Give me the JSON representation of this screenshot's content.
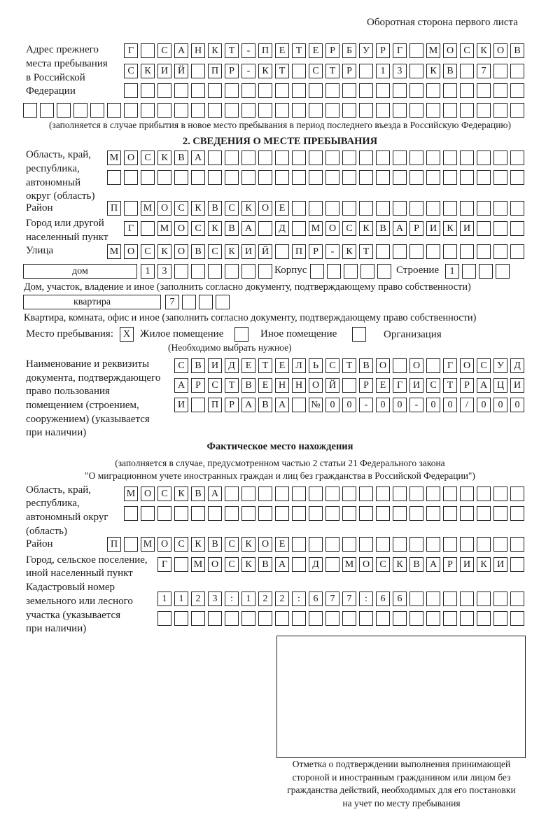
{
  "page_header": "Оборотная сторона первого листа",
  "prev_address": {
    "label": [
      "Адрес прежнего",
      "места пребывания",
      "в Российской",
      "Федерации"
    ],
    "rows": [
      [
        "Г",
        "",
        "С",
        "А",
        "Н",
        "К",
        "Т",
        "-",
        "П",
        "Е",
        "Т",
        "Е",
        "Р",
        "Б",
        "У",
        "Р",
        "Г",
        "",
        "М",
        "О",
        "С",
        "К",
        "О",
        "В"
      ],
      [
        "С",
        "К",
        "И",
        "Й",
        "",
        "П",
        "Р",
        "-",
        "К",
        "Т",
        "",
        "С",
        "Т",
        "Р",
        "",
        "1",
        "3",
        "",
        "К",
        "В",
        "",
        "7",
        "",
        ""
      ],
      [
        "",
        "",
        "",
        "",
        "",
        "",
        "",
        "",
        "",
        "",
        "",
        "",
        "",
        "",
        "",
        "",
        "",
        "",
        "",
        "",
        "",
        "",
        "",
        ""
      ],
      [
        "",
        "",
        "",
        "",
        "",
        "",
        "",
        "",
        "",
        "",
        "",
        "",
        "",
        "",
        "",
        "",
        "",
        "",
        "",
        "",
        "",
        "",
        "",
        "",
        "",
        "",
        "",
        "",
        "",
        ""
      ]
    ],
    "note": "(заполняется в случае прибытия в новое место пребывания в период последнего въезда в Российскую Федерацию)"
  },
  "section2": {
    "title": "2. СВЕДЕНИЯ О МЕСТЕ ПРЕБЫВАНИЯ",
    "region": {
      "label": [
        "Область, край,",
        "республика,",
        "автономный",
        "округ (область)"
      ],
      "rows": [
        [
          "М",
          "О",
          "С",
          "К",
          "В",
          "А",
          "",
          "",
          "",
          "",
          "",
          "",
          "",
          "",
          "",
          "",
          "",
          "",
          "",
          "",
          "",
          "",
          "",
          "",
          ""
        ],
        [
          "",
          "",
          "",
          "",
          "",
          "",
          "",
          "",
          "",
          "",
          "",
          "",
          "",
          "",
          "",
          "",
          "",
          "",
          "",
          "",
          "",
          "",
          "",
          "",
          ""
        ]
      ]
    },
    "district": {
      "label": "Район",
      "row": [
        "П",
        "",
        "М",
        "О",
        "С",
        "К",
        "В",
        "С",
        "К",
        "О",
        "Е",
        "",
        "",
        "",
        "",
        "",
        "",
        "",
        "",
        "",
        "",
        "",
        "",
        "",
        ""
      ]
    },
    "city": {
      "label": [
        "Город или другой",
        "населенный пункт"
      ],
      "row": [
        "Г",
        "",
        "М",
        "О",
        "С",
        "К",
        "В",
        "А",
        "",
        "Д",
        "",
        "М",
        "О",
        "С",
        "К",
        "В",
        "А",
        "Р",
        "И",
        "К",
        "И",
        "",
        "",
        ""
      ]
    },
    "street": {
      "label": "Улица",
      "row": [
        "М",
        "О",
        "С",
        "К",
        "О",
        "В",
        "С",
        "К",
        "И",
        "Й",
        "",
        "П",
        "Р",
        "-",
        "К",
        "Т",
        "",
        "",
        "",
        "",
        "",
        "",
        "",
        "",
        ""
      ]
    },
    "house": {
      "type_value": "дом",
      "number": [
        "1",
        "3",
        "",
        "",
        "",
        "",
        "",
        ""
      ],
      "korpus_label": "Корпус",
      "korpus": [
        "",
        "",
        "",
        "",
        ""
      ],
      "building_label": "Строение",
      "building": [
        "1",
        "",
        "",
        ""
      ],
      "note": "Дом, участок, владение и иное (заполнить согласно документу, подтверждающему право собственности)"
    },
    "apartment": {
      "type_value": "квартира",
      "number": [
        "7",
        "",
        "",
        ""
      ],
      "note": "Квартира, комната, офис и иное (заполнить согласно документу, подтверждающему право собственности)"
    },
    "stay_place": {
      "label": "Место пребывания:",
      "options": [
        {
          "label": "Жилое помещение",
          "mark": "X",
          "checked": true
        },
        {
          "label": "Иное помещение",
          "mark": "",
          "checked": false
        },
        {
          "label": "Организация",
          "mark": "",
          "checked": false
        }
      ],
      "note": "(Необходимо выбрать нужное)"
    },
    "document": {
      "label": [
        "Наименование и реквизиты",
        "документа, подтверждающего",
        "право пользования",
        "помещением (строением,",
        "сооружением) (указывается",
        "при наличии)"
      ],
      "rows": [
        [
          "С",
          "В",
          "И",
          "Д",
          "Е",
          "Т",
          "Е",
          "Л",
          "Ь",
          "С",
          "Т",
          "В",
          "О",
          "",
          "О",
          "",
          "Г",
          "О",
          "С",
          "У",
          "Д"
        ],
        [
          "А",
          "Р",
          "С",
          "Т",
          "В",
          "Е",
          "Н",
          "Н",
          "О",
          "Й",
          "",
          "Р",
          "Е",
          "Г",
          "И",
          "С",
          "Т",
          "Р",
          "А",
          "Ц",
          "И"
        ],
        [
          "И",
          "",
          "П",
          "Р",
          "А",
          "В",
          "А",
          "",
          "№",
          "0",
          "0",
          "-",
          "0",
          "0",
          "-",
          "0",
          "0",
          "/",
          "0",
          "0",
          "0"
        ]
      ]
    }
  },
  "actual": {
    "title": "Фактическое место нахождения",
    "note": [
      "(заполняется в случае, предусмотренном частью 2 статьи 21 Федерального закона",
      "\"О миграционном учете иностранных граждан и лиц без гражданства в Российской Федерации\")"
    ],
    "region": {
      "label": [
        "Область, край,",
        "республика,",
        "автономный округ",
        "(область)"
      ],
      "rows": [
        [
          "М",
          "О",
          "С",
          "К",
          "В",
          "А",
          "",
          "",
          "",
          "",
          "",
          "",
          "",
          "",
          "",
          "",
          "",
          "",
          "",
          "",
          "",
          "",
          "",
          ""
        ],
        [
          "",
          "",
          "",
          "",
          "",
          "",
          "",
          "",
          "",
          "",
          "",
          "",
          "",
          "",
          "",
          "",
          "",
          "",
          "",
          "",
          "",
          "",
          "",
          ""
        ]
      ]
    },
    "district": {
      "label": "Район",
      "row": [
        "П",
        "",
        "М",
        "О",
        "С",
        "К",
        "В",
        "С",
        "К",
        "О",
        "Е",
        "",
        "",
        "",
        "",
        "",
        "",
        "",
        "",
        "",
        "",
        "",
        "",
        "",
        ""
      ]
    },
    "city": {
      "label": [
        "Город, сельское поселение,",
        "иной населенный пункт"
      ],
      "row": [
        "Г",
        "",
        "М",
        "О",
        "С",
        "К",
        "В",
        "А",
        "",
        "Д",
        "",
        "М",
        "О",
        "С",
        "К",
        "В",
        "А",
        "Р",
        "И",
        "К",
        "И",
        ""
      ]
    },
    "cadastral": {
      "label": [
        "Кадастровый номер",
        "земельного или лесного",
        "участка (указывается",
        "при наличии)"
      ],
      "rows": [
        [
          "1",
          "1",
          "2",
          "3",
          ":",
          "1",
          "2",
          "2",
          ":",
          "6",
          "7",
          "7",
          ":",
          "6",
          "6",
          "",
          "",
          "",
          "",
          "",
          "",
          ""
        ],
        [
          "",
          "",
          "",
          "",
          "",
          "",
          "",
          "",
          "",
          "",
          "",
          "",
          "",
          "",
          "",
          "",
          "",
          "",
          "",
          "",
          "",
          ""
        ]
      ]
    }
  },
  "stamp": {
    "caption": [
      "Отметка о подтверждении выполнения принимающей",
      "стороной и иностранным гражданином или лицом без",
      "гражданства действий, необходимых для его постановки",
      "на учет по месту пребывания"
    ]
  }
}
